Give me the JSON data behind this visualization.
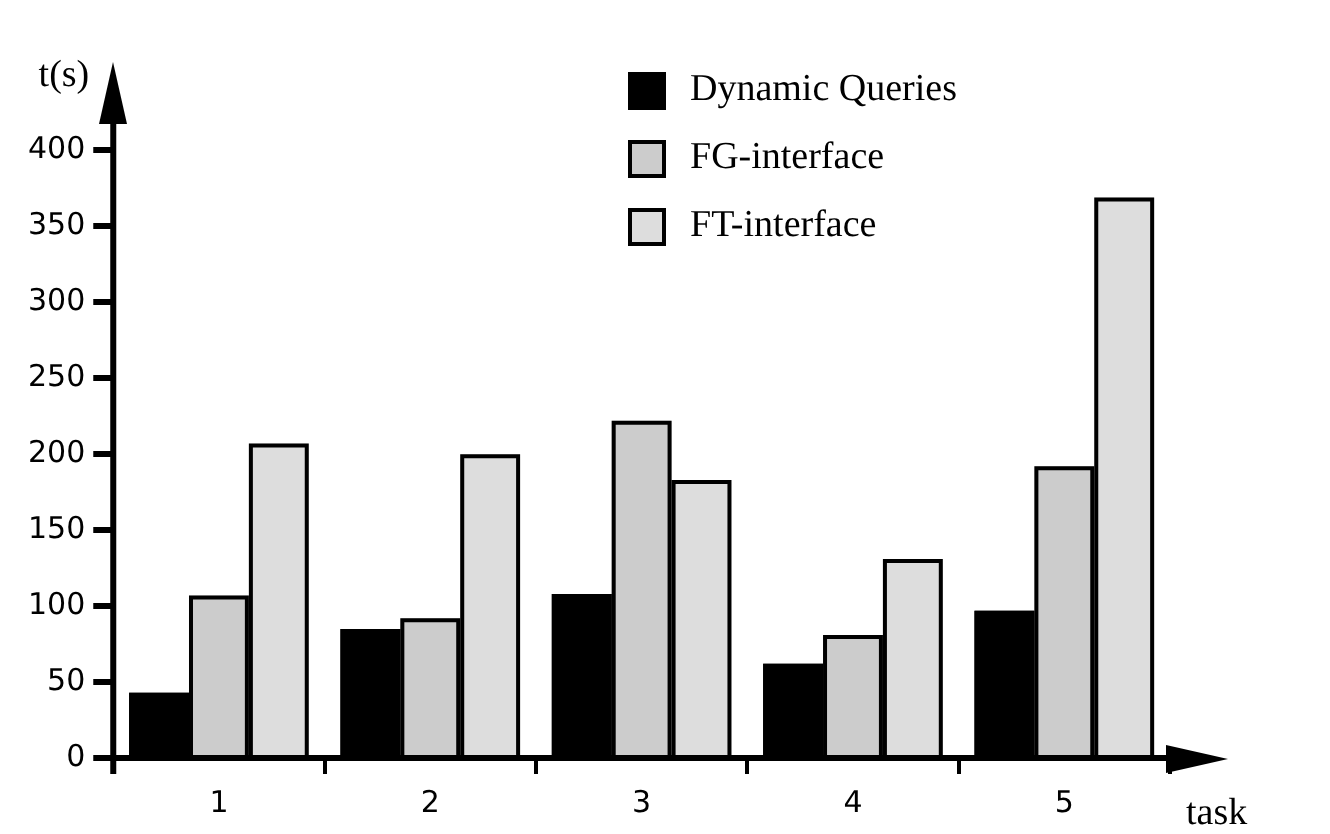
{
  "chart_data": {
    "type": "bar",
    "xlabel": "task",
    "ylabel": "t(s)",
    "categories": [
      "1",
      "2",
      "3",
      "4",
      "5"
    ],
    "series": [
      {
        "name": "Dynamic Queries",
        "color": "#000000",
        "values": [
          43,
          85,
          108,
          62,
          97
        ]
      },
      {
        "name": "FG-interface",
        "color": "#cccccc",
        "values": [
          107,
          92,
          222,
          81,
          192
        ]
      },
      {
        "name": "FT-interface",
        "color": "#dddddd",
        "values": [
          207,
          200,
          183,
          131,
          369
        ]
      }
    ],
    "ylim": [
      0,
      420
    ],
    "yticks": [
      0,
      50,
      100,
      150,
      200,
      250,
      300,
      350,
      400
    ],
    "grid": false,
    "legend": "top right"
  }
}
